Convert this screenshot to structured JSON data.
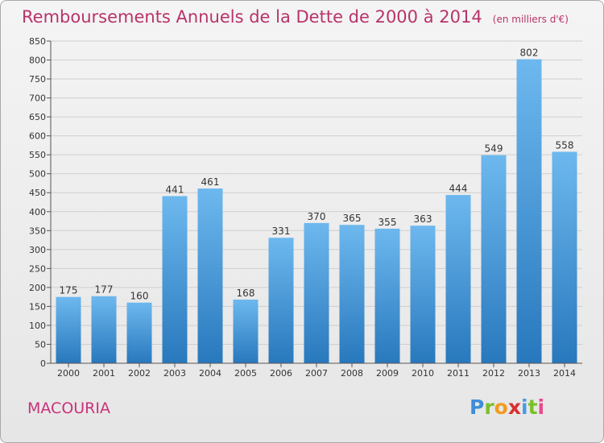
{
  "title": "Remboursements Annuels de la Dette de 2000 à 2014",
  "unit": "(en milliers d'€)",
  "commune": "MACOURIA",
  "logo": {
    "text": "Proxiti",
    "colors": [
      "#3e8ed8",
      "#7bbf2a",
      "#f39a1f",
      "#d8302e",
      "#4a9be0",
      "#7bbf2a",
      "#e84a8a"
    ]
  },
  "colors": {
    "title": "#b8336a",
    "bar_light": "#6db8ee",
    "bar_dark": "#2878bd",
    "grid": "#cfcfcf"
  },
  "chart_data": {
    "type": "bar",
    "categories": [
      "2000",
      "2001",
      "2002",
      "2003",
      "2004",
      "2005",
      "2006",
      "2007",
      "2008",
      "2009",
      "2010",
      "2011",
      "2012",
      "2013",
      "2014"
    ],
    "values": [
      175,
      177,
      160,
      441,
      461,
      168,
      331,
      370,
      365,
      355,
      363,
      444,
      549,
      802,
      558
    ],
    "ylim": [
      0,
      850
    ],
    "yticks": [
      0,
      50,
      100,
      150,
      200,
      250,
      300,
      350,
      400,
      450,
      500,
      550,
      600,
      650,
      700,
      750,
      800,
      850
    ],
    "grid": true,
    "xlabel": "",
    "ylabel": ""
  }
}
